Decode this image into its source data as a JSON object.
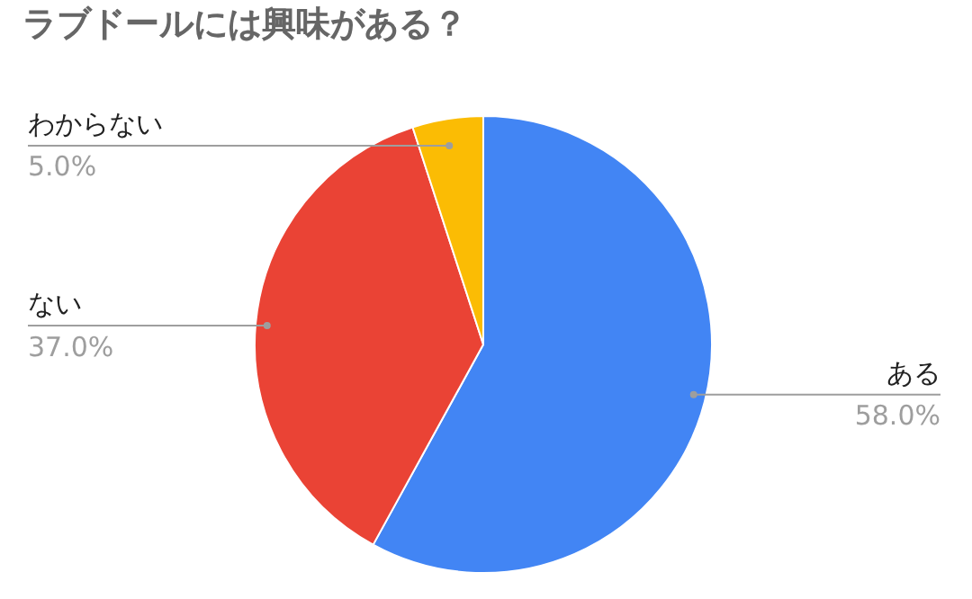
{
  "chart_data": {
    "type": "pie",
    "title": "ラブドールには興味がある？",
    "categories": [
      "ある",
      "ない",
      "わからない"
    ],
    "values": [
      58,
      37,
      5
    ],
    "colors": [
      "#4285f4",
      "#ea4335",
      "#fbbc04"
    ],
    "value_labels": [
      "58.0%",
      "37.0%",
      "5.0%"
    ]
  }
}
